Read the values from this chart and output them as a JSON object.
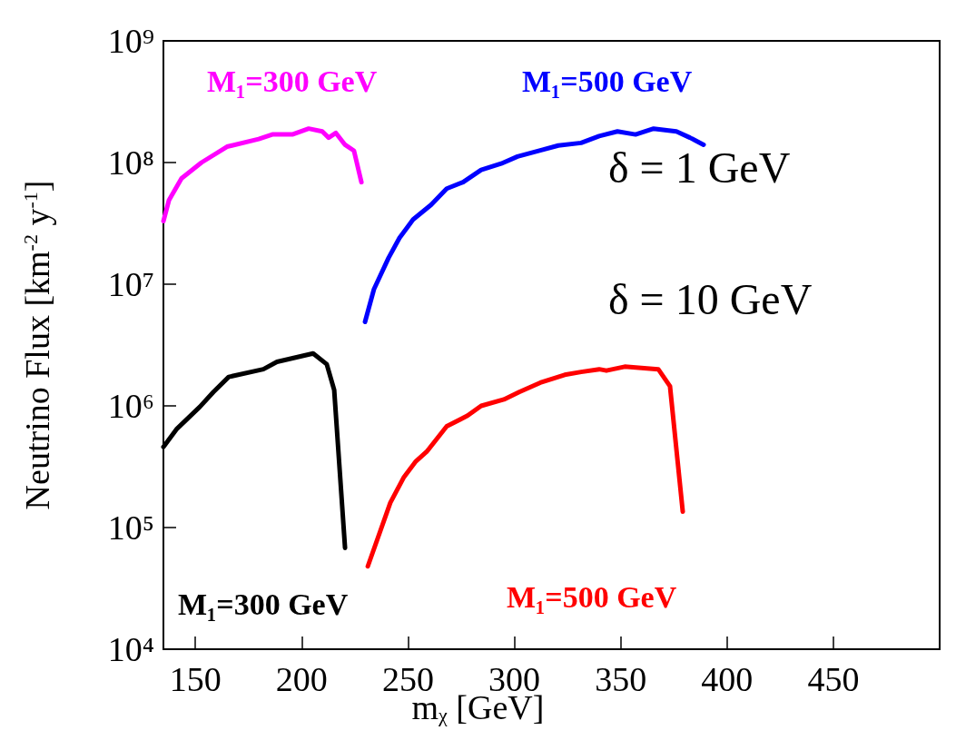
{
  "chart_data": {
    "type": "line",
    "xlabel": "m$_{χ}$ [GeV]",
    "ylabel": "Neutrino Flux [km$^{-2}$ y$^{-1}$]",
    "log": "y",
    "xlim": [
      135,
      500
    ],
    "xticks": [
      150,
      200,
      250,
      300,
      350,
      400,
      450
    ],
    "ylim": [
      10000,
      1000000000
    ],
    "yticks": [
      {
        "value": 10000,
        "label": "10⁴"
      },
      {
        "value": 100000,
        "label": "10⁵"
      },
      {
        "value": 1000000,
        "label": "10⁶"
      },
      {
        "value": 10000000,
        "label": "10⁷"
      },
      {
        "value": 100000000,
        "label": "10⁸"
      },
      {
        "value": 1000000000,
        "label": "10⁹"
      }
    ],
    "grid": false,
    "legend": false,
    "marker": "none",
    "line_style": "solid",
    "annotations": [
      "δ = 1 GeV",
      "δ = 10 GeV"
    ],
    "series": [
      {
        "name": "M₁=300 GeV",
        "color": "#ff00ff",
        "x": [
          135,
          137.6,
          143.5,
          152.9,
          164.9,
          179.8,
          186.2,
          195.6,
          203.3,
          209.7,
          212.7,
          216.1,
          220.4,
          224.6,
          228.1
        ],
        "values": [
          33000000,
          49000000,
          74000000,
          100000000,
          135000000,
          156000000,
          170000000,
          170000000,
          190000000,
          180000000,
          160000000,
          175000000,
          140000000,
          125000000,
          69000000
        ]
      },
      {
        "name": "M₁=500 GeV",
        "color": "#0000ff",
        "x": [
          229.8,
          234.0,
          240.9,
          246.0,
          252.4,
          260.9,
          268.2,
          275.9,
          284.4,
          293.8,
          301.5,
          312.2,
          320.7,
          331.4,
          339.9,
          348.5,
          357.0,
          365.5,
          376.2,
          382.6,
          389.0
        ],
        "values": [
          4900000,
          9100000,
          16500000,
          24000000,
          34000000,
          45000000,
          61000000,
          69000000,
          87000000,
          98000000,
          112000000,
          126000000,
          138000000,
          145000000,
          165000000,
          180000000,
          170000000,
          190000000,
          180000000,
          160000000,
          140000000
        ]
      },
      {
        "name": "M₁=300 GeV",
        "color": "#000000",
        "x": [
          135,
          141.4,
          152.1,
          158.5,
          165.7,
          182.0,
          188.4,
          205.4,
          211.8,
          215.3,
          220.4
        ],
        "values": [
          460000,
          650000,
          980000,
          1300000,
          1730000,
          2000000,
          2300000,
          2700000,
          2200000,
          1350000,
          68000
        ]
      },
      {
        "name": "M₁=500 GeV",
        "color": "#ff0000",
        "x": [
          231.1,
          241.7,
          248.1,
          253.7,
          258.8,
          268.2,
          278.0,
          284.4,
          295.1,
          302.3,
          312.2,
          323.7,
          331.4,
          339.9,
          343.3,
          351.9,
          367.7,
          373.2,
          379.2
        ],
        "values": [
          48000,
          160000,
          260000,
          350000,
          420000,
          680000,
          830000,
          1000000,
          1130000,
          1300000,
          1550000,
          1800000,
          1900000,
          2000000,
          1950000,
          2100000,
          2000000,
          1450000,
          135000
        ]
      }
    ]
  }
}
